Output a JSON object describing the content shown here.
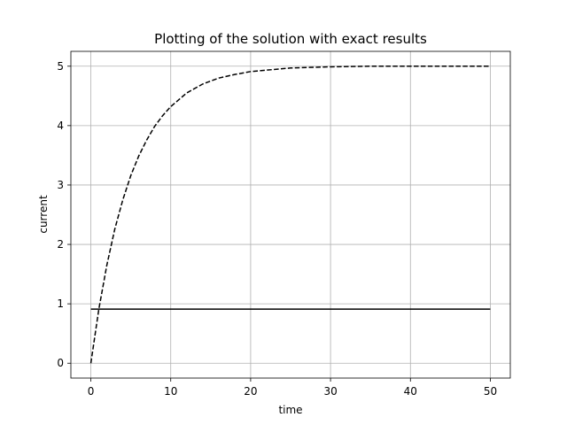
{
  "chart_data": {
    "type": "line",
    "title": "Plotting of the solution with exact results",
    "xlabel": "time",
    "ylabel": "current",
    "xlim": [
      -2.5,
      52.5
    ],
    "ylim": [
      -0.25,
      5.25
    ],
    "xticks": [
      0,
      10,
      20,
      30,
      40,
      50
    ],
    "yticks": [
      0,
      1,
      2,
      3,
      4,
      5
    ],
    "xtick_labels": [
      "0",
      "10",
      "20",
      "30",
      "40",
      "50"
    ],
    "ytick_labels": [
      "0",
      "1",
      "2",
      "3",
      "4",
      "5"
    ],
    "grid": true,
    "series": [
      {
        "style": "dashed",
        "color": "#000000",
        "x": [
          0,
          1,
          2,
          3,
          4,
          5,
          6,
          7,
          8,
          9,
          10,
          12,
          14,
          16,
          18,
          20,
          25,
          30,
          35,
          40,
          45,
          50
        ],
        "y": [
          0,
          0.91,
          1.65,
          2.26,
          2.75,
          3.16,
          3.49,
          3.76,
          3.99,
          4.17,
          4.32,
          4.55,
          4.7,
          4.8,
          4.86,
          4.91,
          4.97,
          4.99,
          5.0,
          5.0,
          5.0,
          5.0
        ]
      },
      {
        "style": "solid",
        "color": "#000000",
        "x": [
          0,
          50
        ],
        "y": [
          0.91,
          0.91
        ]
      }
    ]
  }
}
